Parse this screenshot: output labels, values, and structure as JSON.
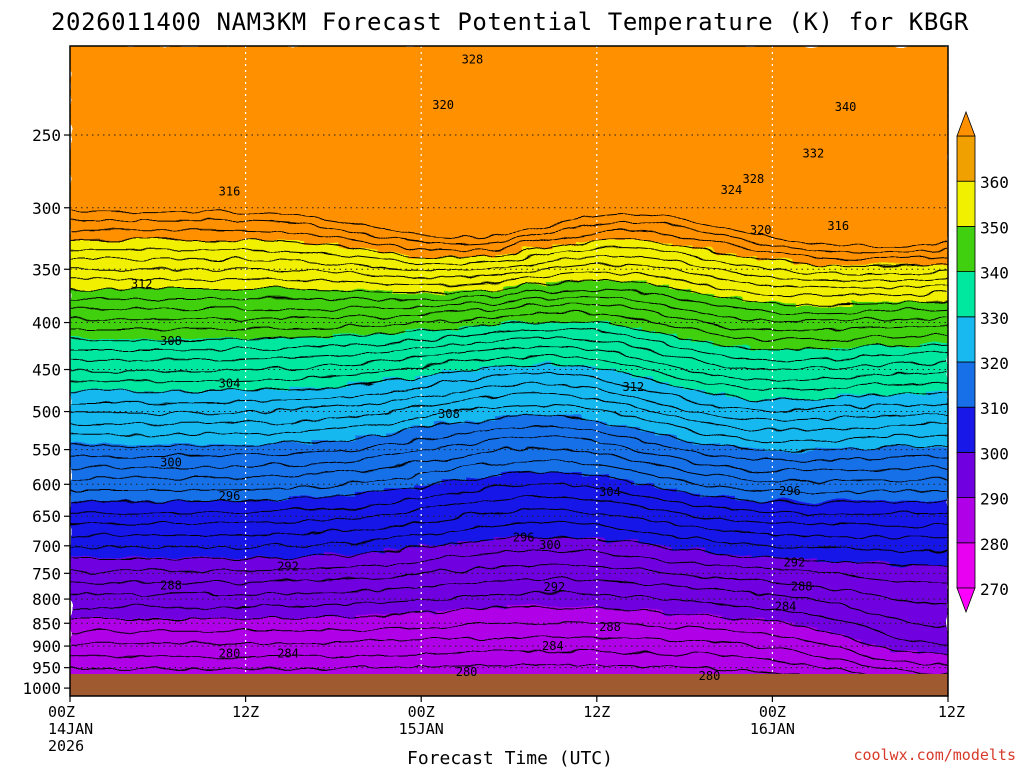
{
  "chart_data": {
    "type": "contour",
    "title": "2026011400 NAM3KM Forecast Potential Temperature (K) for KBGR",
    "xlabel": "Forecast Time (UTC)",
    "ylabel": "",
    "credit": "coolwx.com/modelts",
    "x_ticks": [
      {
        "line1": "00Z",
        "line2": "14JAN",
        "line3": "2026",
        "hour": 0
      },
      {
        "line1": "12Z",
        "line2": "",
        "line3": "",
        "hour": 12
      },
      {
        "line1": "00Z",
        "line2": "15JAN",
        "line3": "",
        "hour": 24
      },
      {
        "line1": "12Z",
        "line2": "",
        "line3": "",
        "hour": 36
      },
      {
        "line1": "00Z",
        "line2": "16JAN",
        "line3": "",
        "hour": 48
      },
      {
        "line1": "12Z",
        "line2": "",
        "line3": "",
        "hour": 60
      }
    ],
    "xlim": [
      0,
      60
    ],
    "y_ticks": [
      250,
      300,
      350,
      400,
      450,
      500,
      550,
      600,
      650,
      700,
      750,
      800,
      850,
      900,
      950,
      1000
    ],
    "ylim": [
      200,
      1020
    ],
    "y_scale": "log",
    "colorbar": {
      "ticks": [
        270,
        280,
        290,
        300,
        310,
        320,
        330,
        340,
        350,
        360
      ],
      "colors": [
        "#e800f0",
        "#b000e8",
        "#7000e0",
        "#1818e8",
        "#1870e8",
        "#18b8f0",
        "#00e8a0",
        "#40d010",
        "#f0f000",
        "#f0a000"
      ],
      "range_colors": {
        "below": "#ff00ff",
        "above": "#ff9000"
      }
    },
    "surface_color": "#a05a30",
    "contour_labels": [
      {
        "value": "328",
        "hour": 27.5,
        "p": 207
      },
      {
        "value": "320",
        "hour": 25.5,
        "p": 232
      },
      {
        "value": "316",
        "hour": 10.9,
        "p": 288
      },
      {
        "value": "312",
        "hour": 4.9,
        "p": 363
      },
      {
        "value": "308",
        "hour": 6.9,
        "p": 419
      },
      {
        "value": "304",
        "hour": 10.9,
        "p": 466
      },
      {
        "value": "308",
        "hour": 25.9,
        "p": 503
      },
      {
        "value": "312",
        "hour": 38.5,
        "p": 470
      },
      {
        "value": "300",
        "hour": 6.9,
        "p": 568
      },
      {
        "value": "296",
        "hour": 10.9,
        "p": 618
      },
      {
        "value": "292",
        "hour": 14.9,
        "p": 737
      },
      {
        "value": "288",
        "hour": 6.9,
        "p": 773
      },
      {
        "value": "284",
        "hour": 14.9,
        "p": 917
      },
      {
        "value": "280",
        "hour": 10.9,
        "p": 917
      },
      {
        "value": "304",
        "hour": 36.9,
        "p": 612
      },
      {
        "value": "296",
        "hour": 31.0,
        "p": 686
      },
      {
        "value": "300",
        "hour": 32.8,
        "p": 699
      },
      {
        "value": "292",
        "hour": 33.1,
        "p": 776
      },
      {
        "value": "288",
        "hour": 36.9,
        "p": 858
      },
      {
        "value": "284",
        "hour": 33.0,
        "p": 900
      },
      {
        "value": "280",
        "hour": 27.1,
        "p": 960
      },
      {
        "value": "280",
        "hour": 43.7,
        "p": 970
      },
      {
        "value": "296",
        "hour": 49.2,
        "p": 610
      },
      {
        "value": "292",
        "hour": 49.5,
        "p": 730
      },
      {
        "value": "288",
        "hour": 50.0,
        "p": 775
      },
      {
        "value": "284",
        "hour": 48.9,
        "p": 815
      },
      {
        "value": "340",
        "hour": 53.0,
        "p": 233
      },
      {
        "value": "332",
        "hour": 50.8,
        "p": 262
      },
      {
        "value": "328",
        "hour": 46.7,
        "p": 279
      },
      {
        "value": "324",
        "hour": 45.2,
        "p": 287
      },
      {
        "value": "320",
        "hour": 47.2,
        "p": 317
      },
      {
        "value": "316",
        "hour": 52.5,
        "p": 314
      }
    ]
  }
}
